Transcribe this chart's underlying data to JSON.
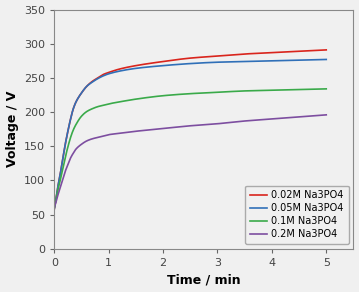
{
  "title": "",
  "xlabel": "Time / min",
  "ylabel": "Voltage / V",
  "xlim": [
    0,
    5.5
  ],
  "ylim": [
    0,
    350
  ],
  "xticks": [
    0,
    1,
    2,
    3,
    4,
    5
  ],
  "yticks": [
    0,
    50,
    100,
    150,
    200,
    250,
    300,
    350
  ],
  "series": [
    {
      "label": "0.02M Na3PO4",
      "color": "#d9251d",
      "t": [
        0,
        0.03,
        0.06,
        0.1,
        0.15,
        0.2,
        0.25,
        0.3,
        0.35,
        0.4,
        0.5,
        0.6,
        0.7,
        0.8,
        0.9,
        1.0,
        1.2,
        1.5,
        2.0,
        2.5,
        3.0,
        3.5,
        4.0,
        4.5,
        5.0
      ],
      "v": [
        58,
        72,
        88,
        105,
        128,
        152,
        172,
        190,
        205,
        215,
        228,
        238,
        245,
        250,
        255,
        258,
        263,
        268,
        274,
        279,
        282,
        285,
        287,
        289,
        291
      ]
    },
    {
      "label": "0.05M Na3PO4",
      "color": "#3070b8",
      "t": [
        0,
        0.03,
        0.06,
        0.1,
        0.15,
        0.2,
        0.25,
        0.3,
        0.35,
        0.4,
        0.5,
        0.6,
        0.7,
        0.8,
        0.9,
        1.0,
        1.2,
        1.5,
        2.0,
        2.5,
        3.0,
        3.5,
        4.0,
        4.5,
        5.0
      ],
      "v": [
        58,
        72,
        88,
        105,
        128,
        152,
        172,
        190,
        205,
        215,
        228,
        238,
        244,
        249,
        253,
        256,
        260,
        264,
        268,
        271,
        273,
        274,
        275,
        276,
        277
      ]
    },
    {
      "label": "0.1M Na3PO4",
      "color": "#3aaa4a",
      "t": [
        0,
        0.03,
        0.06,
        0.1,
        0.15,
        0.2,
        0.25,
        0.3,
        0.35,
        0.4,
        0.5,
        0.6,
        0.7,
        0.8,
        0.9,
        1.0,
        1.2,
        1.5,
        2.0,
        2.5,
        3.0,
        3.5,
        4.0,
        4.5,
        5.0
      ],
      "v": [
        60,
        72,
        84,
        97,
        115,
        133,
        149,
        163,
        174,
        182,
        194,
        201,
        205,
        208,
        210,
        212,
        215,
        219,
        224,
        227,
        229,
        231,
        232,
        233,
        234
      ]
    },
    {
      "label": "0.2M Na3PO4",
      "color": "#7d4ea0",
      "t": [
        0,
        0.03,
        0.06,
        0.1,
        0.15,
        0.2,
        0.25,
        0.3,
        0.35,
        0.4,
        0.5,
        0.6,
        0.7,
        0.8,
        0.9,
        1.0,
        1.2,
        1.5,
        2.0,
        2.5,
        3.0,
        3.5,
        4.0,
        4.5,
        5.0
      ],
      "v": [
        60,
        68,
        77,
        87,
        100,
        113,
        123,
        133,
        140,
        146,
        153,
        158,
        161,
        163,
        165,
        167,
        169,
        172,
        176,
        180,
        183,
        187,
        190,
        193,
        196
      ]
    }
  ],
  "figsize": [
    3.59,
    2.92
  ],
  "dpi": 100,
  "bg_color": "#f0f0f0",
  "plot_bg_color": "#f0f0f0",
  "linewidth": 1.2,
  "legend_fontsize": 7,
  "axis_label_fontsize": 9,
  "tick_fontsize": 8
}
